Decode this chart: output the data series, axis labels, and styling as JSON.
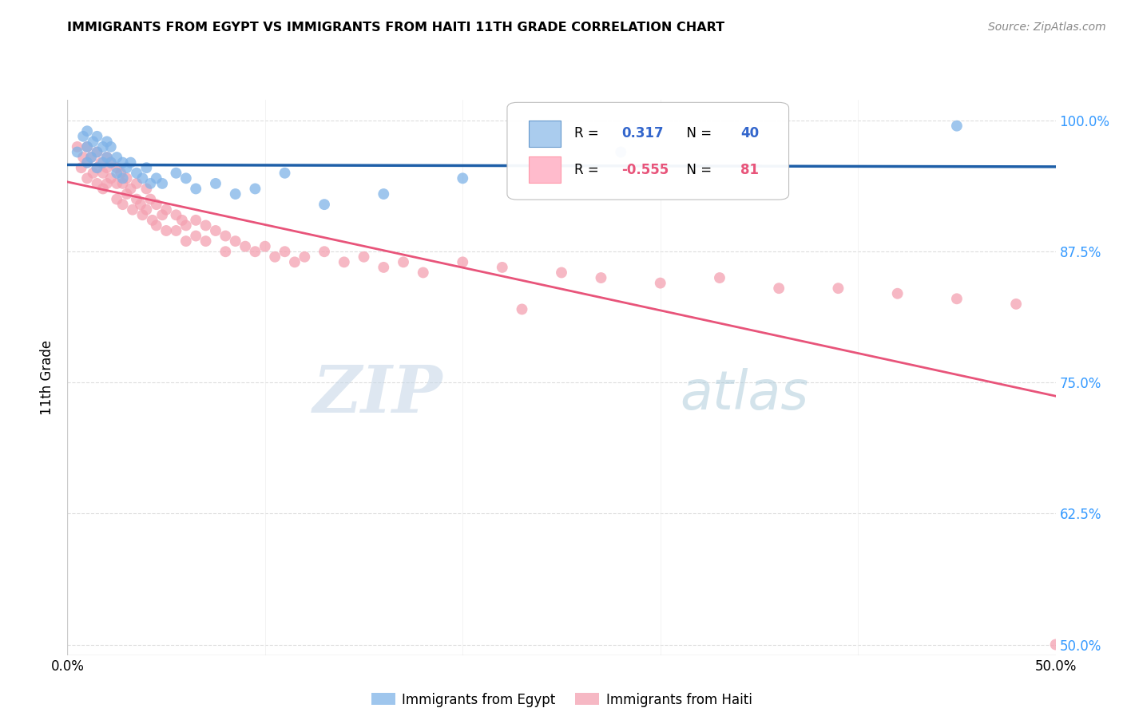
{
  "title": "IMMIGRANTS FROM EGYPT VS IMMIGRANTS FROM HAITI 11TH GRADE CORRELATION CHART",
  "source": "Source: ZipAtlas.com",
  "ylabel": "11th Grade",
  "xlim": [
    0.0,
    0.5
  ],
  "ylim": [
    0.49,
    1.02
  ],
  "ytick_labels": [
    "50.0%",
    "62.5%",
    "75.0%",
    "87.5%",
    "100.0%"
  ],
  "ytick_values": [
    0.5,
    0.625,
    0.75,
    0.875,
    1.0
  ],
  "xtick_values": [
    0.0,
    0.1,
    0.2,
    0.3,
    0.4,
    0.5
  ],
  "xtick_labels": [
    "0.0%",
    "",
    "",
    "",
    "",
    "50.0%"
  ],
  "egypt_color": "#7FB3E8",
  "haiti_color": "#F4A0B0",
  "egypt_line_color": "#1E5FA8",
  "haiti_line_color": "#E8547A",
  "egypt_R": 0.317,
  "egypt_N": 40,
  "haiti_R": -0.555,
  "haiti_N": 81,
  "watermark_zip": "ZIP",
  "watermark_atlas": "atlas",
  "background_color": "#FFFFFF",
  "egypt_scatter_x": [
    0.005,
    0.008,
    0.01,
    0.01,
    0.01,
    0.012,
    0.013,
    0.015,
    0.015,
    0.015,
    0.018,
    0.018,
    0.02,
    0.02,
    0.022,
    0.022,
    0.025,
    0.025,
    0.028,
    0.028,
    0.03,
    0.032,
    0.035,
    0.038,
    0.04,
    0.042,
    0.045,
    0.048,
    0.055,
    0.06,
    0.065,
    0.075,
    0.085,
    0.095,
    0.11,
    0.13,
    0.16,
    0.2,
    0.28,
    0.45
  ],
  "egypt_scatter_y": [
    0.97,
    0.985,
    0.96,
    0.975,
    0.99,
    0.965,
    0.98,
    0.955,
    0.97,
    0.985,
    0.96,
    0.975,
    0.965,
    0.98,
    0.96,
    0.975,
    0.965,
    0.95,
    0.96,
    0.945,
    0.955,
    0.96,
    0.95,
    0.945,
    0.955,
    0.94,
    0.945,
    0.94,
    0.95,
    0.945,
    0.935,
    0.94,
    0.93,
    0.935,
    0.95,
    0.92,
    0.93,
    0.945,
    0.97,
    0.995
  ],
  "haiti_scatter_x": [
    0.005,
    0.007,
    0.008,
    0.01,
    0.01,
    0.01,
    0.012,
    0.013,
    0.015,
    0.015,
    0.015,
    0.017,
    0.018,
    0.018,
    0.02,
    0.02,
    0.02,
    0.022,
    0.022,
    0.025,
    0.025,
    0.025,
    0.027,
    0.028,
    0.028,
    0.03,
    0.03,
    0.032,
    0.033,
    0.035,
    0.035,
    0.037,
    0.038,
    0.04,
    0.04,
    0.042,
    0.043,
    0.045,
    0.045,
    0.048,
    0.05,
    0.05,
    0.055,
    0.055,
    0.058,
    0.06,
    0.06,
    0.065,
    0.065,
    0.07,
    0.07,
    0.075,
    0.08,
    0.08,
    0.085,
    0.09,
    0.095,
    0.1,
    0.105,
    0.11,
    0.115,
    0.12,
    0.13,
    0.14,
    0.15,
    0.16,
    0.17,
    0.18,
    0.2,
    0.22,
    0.25,
    0.27,
    0.3,
    0.33,
    0.36,
    0.39,
    0.42,
    0.45,
    0.48,
    0.23,
    0.5
  ],
  "haiti_scatter_y": [
    0.975,
    0.955,
    0.965,
    0.975,
    0.96,
    0.945,
    0.965,
    0.95,
    0.955,
    0.97,
    0.94,
    0.96,
    0.95,
    0.935,
    0.965,
    0.955,
    0.94,
    0.96,
    0.945,
    0.955,
    0.94,
    0.925,
    0.95,
    0.94,
    0.92,
    0.945,
    0.93,
    0.935,
    0.915,
    0.94,
    0.925,
    0.92,
    0.91,
    0.935,
    0.915,
    0.925,
    0.905,
    0.92,
    0.9,
    0.91,
    0.915,
    0.895,
    0.91,
    0.895,
    0.905,
    0.9,
    0.885,
    0.905,
    0.89,
    0.9,
    0.885,
    0.895,
    0.89,
    0.875,
    0.885,
    0.88,
    0.875,
    0.88,
    0.87,
    0.875,
    0.865,
    0.87,
    0.875,
    0.865,
    0.87,
    0.86,
    0.865,
    0.855,
    0.865,
    0.86,
    0.855,
    0.85,
    0.845,
    0.85,
    0.84,
    0.84,
    0.835,
    0.83,
    0.825,
    0.82,
    0.5
  ]
}
